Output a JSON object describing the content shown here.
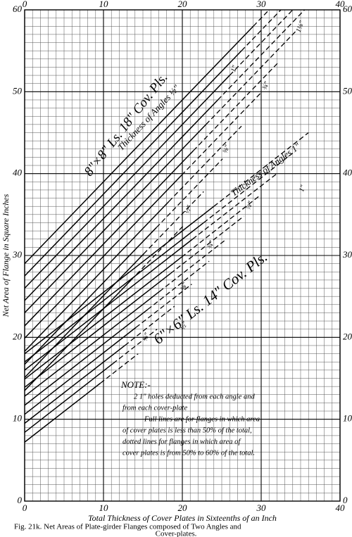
{
  "chart_data": {
    "type": "line",
    "x_label": "Total Thickness of Cover Plates in Sixteenths of an Inch",
    "y_label": "Net Area of Flange in Square Inches",
    "caption": [
      "Fig. 21k. Net Areas of Plate-girder Flanges composed of Two Angles and",
      "Cover-plates."
    ],
    "xlim": [
      0,
      40
    ],
    "ylim": [
      0,
      60
    ],
    "xticks": [
      0,
      10,
      20,
      30,
      40
    ],
    "yticks": [
      0,
      10,
      20,
      30,
      40,
      50,
      60
    ],
    "grid": true,
    "minor_grid": 1,
    "color": "#000000",
    "segment_styles": [
      "solid",
      "dashed"
    ],
    "series": [
      {
        "x": [
          0,
          13.5,
          20.3
        ],
        "values": [
          13.5,
          27,
          33.8
        ]
      },
      {
        "x": [
          0,
          15.1,
          22.7
        ],
        "values": [
          15.1,
          30.2,
          37.8
        ]
      },
      {
        "x": [
          0,
          16.7,
          25.1
        ],
        "values": [
          16.7,
          33.4,
          41.8
        ]
      },
      {
        "x": [
          0,
          18.3,
          27.5
        ],
        "values": [
          18.3,
          36.6,
          45.8
        ]
      },
      {
        "x": [
          0,
          19.9,
          29.9
        ],
        "values": [
          19.9,
          39.8,
          49.8
        ]
      },
      {
        "x": [
          0,
          21.4,
          32.1
        ],
        "values": [
          21.4,
          42.8,
          53.5
        ]
      },
      {
        "x": [
          0,
          23,
          34.5
        ],
        "values": [
          23,
          46,
          57.5
        ]
      },
      {
        "x": [
          0,
          24.5,
          35.5
        ],
        "values": [
          24.5,
          49,
          60
        ]
      },
      {
        "x": [
          0,
          26,
          34
        ],
        "values": [
          26,
          52,
          60
        ]
      },
      {
        "x": [
          0,
          27.5,
          32.5
        ],
        "values": [
          27.5,
          55,
          60
        ]
      },
      {
        "x": [
          0,
          29,
          31
        ],
        "values": [
          29,
          58,
          60
        ]
      },
      {
        "x": [
          0,
          9.6,
          14.4
        ],
        "values": [
          7.2,
          14.4,
          18
        ]
      },
      {
        "x": [
          0,
          11.2,
          16.8
        ],
        "values": [
          8.4,
          16.8,
          21
        ]
      },
      {
        "x": [
          0,
          12.7,
          19
        ],
        "values": [
          9.5,
          19,
          23.8
        ]
      },
      {
        "x": [
          0,
          14.1,
          21.2
        ],
        "values": [
          10.6,
          21.2,
          26.5
        ]
      },
      {
        "x": [
          0,
          15.6,
          23.4
        ],
        "values": [
          11.7,
          23.4,
          29.3
        ]
      },
      {
        "x": [
          0,
          17.1,
          25.6
        ],
        "values": [
          12.8,
          25.6,
          32
        ]
      },
      {
        "x": [
          0,
          18.5,
          27.8
        ],
        "values": [
          13.9,
          27.8,
          34.8
        ]
      },
      {
        "x": [
          0,
          19.9,
          29.8
        ],
        "values": [
          14.9,
          29.8,
          37.3
        ]
      },
      {
        "x": [
          0,
          21.3,
          32
        ],
        "values": [
          16,
          32,
          40
        ]
      },
      {
        "x": [
          0,
          22.7,
          34
        ],
        "values": [
          17,
          34,
          42.5
        ]
      },
      {
        "x": [
          0,
          24,
          36
        ],
        "values": [
          18,
          36,
          45
        ]
      }
    ],
    "annotations": [
      "8\"×8\" Ls. 18\" Cov. Pls.",
      "Thickness of Angles ½\"",
      "Thickness of Angles 1\"",
      "6\"×6\" Ls. 14\" Cov. Pls.",
      "1⅛\"",
      "1\"",
      "¾\"",
      "⅝\"",
      "½\"",
      "1\"",
      "⅞\"",
      "¾\"",
      "⅝\"",
      "½\"",
      "⅜\""
    ],
    "note": [
      "NOTE:-",
      "2 1\" holes deducted from each angle and",
      "from each cover-plate",
      "Full lines are for flanges in which area",
      "of cover plates is less than 50% of the total,",
      "dotted lines for flanges in which area of",
      "cover plates is from 50% to 60% of the total."
    ]
  }
}
